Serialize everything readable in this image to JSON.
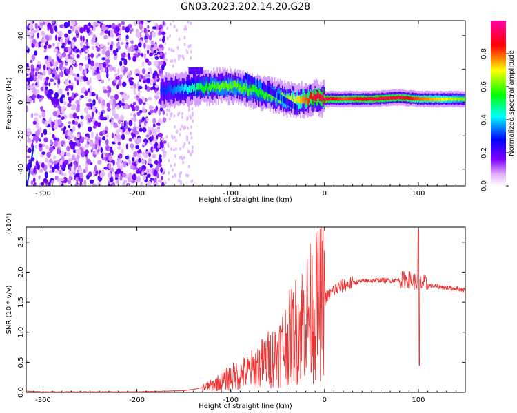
{
  "figure": {
    "title": "GN03.2023.202.14.20.G28"
  },
  "chart_data": [
    {
      "type": "heatmap",
      "xlabel": "Height of straight line (km)",
      "ylabel": "Frequency (Hz)",
      "xlim": [
        -318,
        150
      ],
      "ylim": [
        -50,
        49
      ],
      "xticks": [
        -300,
        -200,
        -100,
        0,
        100
      ],
      "xtick_labels": [
        "-300",
        "-200",
        "-100",
        "0",
        "100"
      ],
      "yticks": [
        -40,
        -20,
        0,
        20,
        40
      ],
      "ytick_labels": [
        "-40",
        "-20",
        "0",
        "20",
        "40"
      ],
      "colorbar": {
        "label": "Normalized spectral amplitude",
        "range": [
          0,
          1
        ],
        "ticks": [
          0.0,
          0.2,
          0.4,
          0.6,
          0.8
        ],
        "tick_labels": [
          "0.0",
          "0.2",
          "0.4",
          "0.6",
          "0.8"
        ],
        "colormap": "rainbow: white, violet, blue, cyan, green, yellow, red, magenta"
      },
      "ridge": {
        "description_points_x": [
          -170,
          -150,
          -130,
          -110,
          -90,
          -70,
          -50,
          -30,
          -10,
          0,
          20,
          50,
          80,
          100,
          150
        ],
        "description_points_y": [
          7,
          8,
          9,
          10,
          9,
          6,
          3,
          1,
          3,
          2,
          2,
          2,
          3,
          2,
          2
        ],
        "peak_amplitude": [
          0.3,
          0.4,
          0.55,
          0.6,
          0.6,
          0.55,
          0.6,
          0.7,
          0.9,
          0.9,
          0.8,
          0.9,
          0.9,
          0.8,
          0.6
        ]
      },
      "grid": false
    },
    {
      "type": "line",
      "xlabel": "Height of straight line (km)",
      "ylabel": "SNR (10 * v/v)",
      "scale_label": "(x10⁴)",
      "xlim": [
        -318,
        150
      ],
      "ylim": [
        0,
        2.75
      ],
      "xticks": [
        -300,
        -200,
        -100,
        0,
        100
      ],
      "xtick_labels": [
        "-300",
        "-200",
        "-100",
        "0",
        "100"
      ],
      "yticks": [
        0.0,
        0.5,
        1.0,
        1.5,
        2.0,
        2.5
      ],
      "ytick_labels": [
        "0.0",
        "0.5",
        "1.0",
        "1.5",
        "2.0",
        "2.5"
      ],
      "color": "#ee3333",
      "series": [
        {
          "x": [
            -318,
            -300,
            -250,
            -200,
            -170,
            -150,
            -140,
            -130,
            -120,
            -110,
            -100,
            -90,
            -80,
            -70,
            -60,
            -50,
            -40,
            -30,
            -20,
            -10,
            0,
            10,
            20,
            30,
            40,
            50,
            60,
            70,
            80,
            90,
            95,
            100,
            105,
            110,
            120,
            130,
            140,
            150
          ],
          "y": [
            0.02,
            0.01,
            0.01,
            0.01,
            0.02,
            0.03,
            0.05,
            0.08,
            0.12,
            0.18,
            0.25,
            0.3,
            0.35,
            0.45,
            0.55,
            0.65,
            0.85,
            1.05,
            1.25,
            1.4,
            1.55,
            1.7,
            1.78,
            1.82,
            1.85,
            1.86,
            1.87,
            1.86,
            1.87,
            1.88,
            1.85,
            1.8,
            1.82,
            1.78,
            1.76,
            1.74,
            1.73,
            1.7
          ]
        }
      ],
      "grid": false
    }
  ]
}
